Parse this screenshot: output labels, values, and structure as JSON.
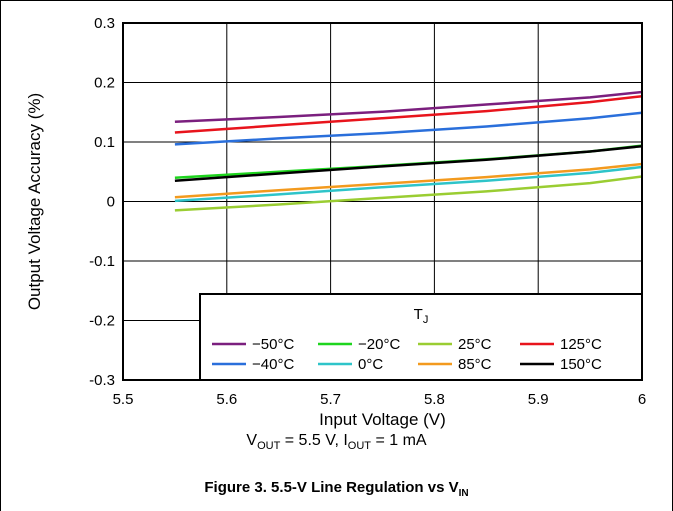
{
  "chart_data": {
    "type": "line",
    "xlabel": "Input Voltage (V)",
    "ylabel": "Output Voltage Accuracy (%)",
    "xlim": [
      5.5,
      6
    ],
    "ylim": [
      -0.3,
      0.3
    ],
    "x_ticks": [
      "5.5",
      "5.6",
      "5.7",
      "5.8",
      "5.9",
      "6"
    ],
    "y_ticks": [
      "0.3",
      "0.2",
      "0.1",
      "0",
      "-0.1",
      "-0.2",
      "-0.3"
    ],
    "grid": true,
    "legend_title": "T",
    "legend_title_sub": "J",
    "legend_position": "bottom-right",
    "x": [
      5.55,
      5.65,
      5.75,
      5.85,
      5.95,
      6.0
    ],
    "series": [
      {
        "name": "−50°C",
        "color": "#7b1f7e",
        "values": [
          0.134,
          0.142,
          0.151,
          0.163,
          0.175,
          0.184
        ]
      },
      {
        "name": "−40°C",
        "color": "#2a6fdb",
        "values": [
          0.096,
          0.106,
          0.115,
          0.126,
          0.14,
          0.149
        ]
      },
      {
        "name": "−20°C",
        "color": "#1ed51e",
        "values": [
          0.04,
          0.05,
          0.06,
          0.071,
          0.084,
          0.094
        ]
      },
      {
        "name": "0°C",
        "color": "#2ec4c9",
        "values": [
          0.001,
          0.012,
          0.024,
          0.035,
          0.048,
          0.058
        ]
      },
      {
        "name": "25°C",
        "color": "#9acd32",
        "values": [
          -0.015,
          -0.005,
          0.006,
          0.017,
          0.031,
          0.042
        ]
      },
      {
        "name": "85°C",
        "color": "#f39a1e",
        "values": [
          0.007,
          0.019,
          0.03,
          0.041,
          0.054,
          0.063
        ]
      },
      {
        "name": "125°C",
        "color": "#e8141c",
        "values": [
          0.116,
          0.128,
          0.14,
          0.152,
          0.167,
          0.177
        ]
      },
      {
        "name": "150°C",
        "color": "#000000",
        "values": [
          0.035,
          0.047,
          0.059,
          0.07,
          0.084,
          0.093
        ]
      }
    ]
  },
  "conditions": {
    "v_label": "V",
    "v_sub": "OUT",
    "v_value": " = 5.5 V, I",
    "i_sub": "OUT",
    "i_value": " = 1 mA"
  },
  "caption": {
    "text": "Figure 3. 5.5-V Line Regulation vs V",
    "sub": "IN"
  }
}
